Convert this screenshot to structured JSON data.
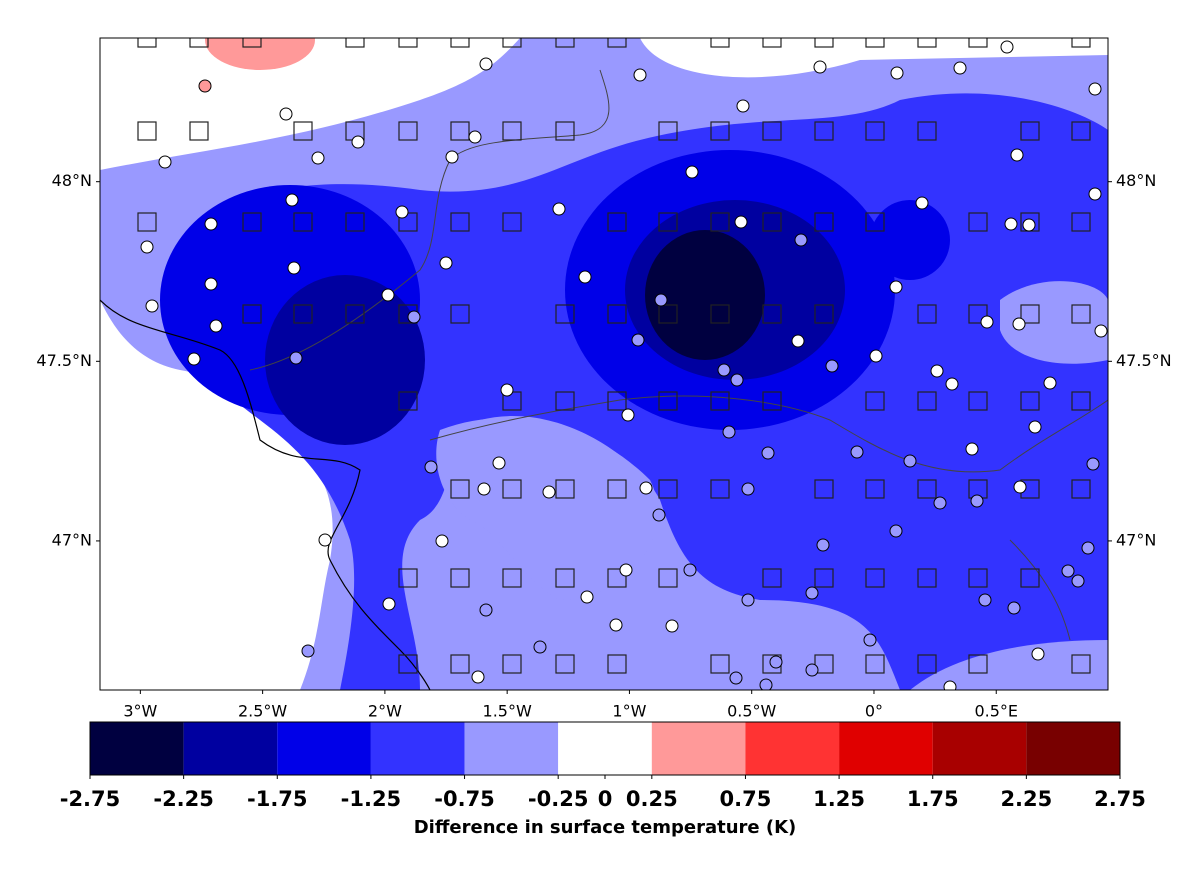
{
  "chart_data": {
    "type": "map",
    "xlim": [
      -3.165,
      0.957
    ],
    "ylim": [
      46.585,
      48.4
    ],
    "xticks": [
      {
        "value": -3,
        "label": "3°W"
      },
      {
        "value": -2.5,
        "label": "2.5°W"
      },
      {
        "value": -2,
        "label": "2°W"
      },
      {
        "value": -1.5,
        "label": "1.5°W"
      },
      {
        "value": -1,
        "label": "1°W"
      },
      {
        "value": -0.5,
        "label": "0.5°W"
      },
      {
        "value": 0,
        "label": "0°"
      },
      {
        "value": 0.5,
        "label": "0.5°E"
      }
    ],
    "yticks": [
      {
        "value": 48,
        "label": "48°N"
      },
      {
        "value": 47.5,
        "label": "47.5°N"
      },
      {
        "value": 47,
        "label": "47°N"
      }
    ],
    "colorbar": {
      "label": "Difference in surface temperature (K)",
      "boundaries": [
        -2.75,
        -2.25,
        -1.75,
        -1.25,
        -0.75,
        -0.25,
        0.25,
        0.75,
        1.25,
        1.75,
        2.25,
        2.75
      ],
      "colors": [
        "#000040",
        "#0000a0",
        "#0000e8",
        "#3333ff",
        "#9999ff",
        "#ffffff",
        "#ff9999",
        "#ff3333",
        "#e00000",
        "#a80000",
        "#780000"
      ],
      "ticks": [
        -2.75,
        -2.25,
        -1.75,
        -1.25,
        -0.75,
        -0.25,
        0,
        0.25,
        0.75,
        1.25,
        1.75,
        2.25,
        2.75
      ]
    }
  }
}
